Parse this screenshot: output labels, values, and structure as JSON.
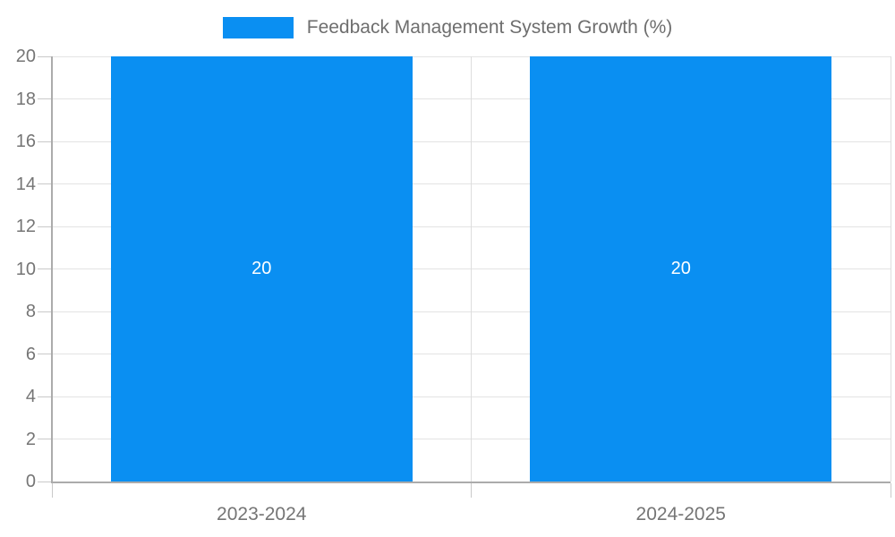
{
  "chart_data": {
    "type": "bar",
    "title": "Feedback Management System Growth (%)",
    "categories": [
      "2023-2024",
      "2024-2025"
    ],
    "series": [
      {
        "name": "Feedback Management System Growth (%)",
        "values": [
          20,
          20
        ],
        "value_labels": [
          "20",
          "20"
        ]
      }
    ],
    "xlabel": "",
    "ylabel": "",
    "ylim": [
      0,
      20
    ],
    "yticks": [
      0,
      2,
      4,
      6,
      8,
      10,
      12,
      14,
      16,
      18,
      20
    ],
    "ytick_labels": [
      "0",
      "2",
      "4",
      "6",
      "8",
      "10",
      "12",
      "14",
      "16",
      "18",
      "20"
    ],
    "grid": true,
    "legend_position": "top-center",
    "value_label_position": "center-of-bar"
  },
  "colors": {
    "series": "#0a8ff2",
    "title_text": "#6e6e6e",
    "axis_text": "#757575",
    "gridline": "#e3e3e3",
    "category_gridline": "#dddddd",
    "tick": "#c9c9c9",
    "axis_line": "#ababab",
    "value_label": "#ffffff",
    "background": "#ffffff"
  }
}
